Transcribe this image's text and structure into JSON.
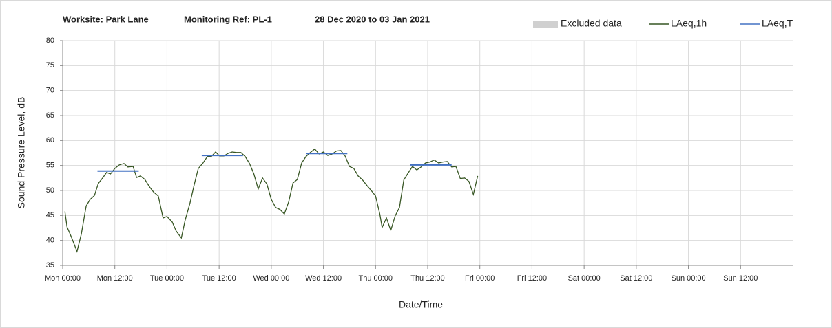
{
  "chart_data": {
    "type": "line",
    "title": [
      "Worksite: Park Lane",
      "Monitoring Ref: PL-1",
      "28 Dec 2020 to 03 Jan 2021"
    ],
    "x_label": "Date/Time",
    "y_label": "Sound Pressure Level, dB",
    "xlim": [
      0,
      168
    ],
    "xticks": [
      {
        "value": 0,
        "label": "Mon 00:00"
      },
      {
        "value": 12,
        "label": "Mon 12:00"
      },
      {
        "value": 24,
        "label": "Tue 00:00"
      },
      {
        "value": 36,
        "label": "Tue 12:00"
      },
      {
        "value": 48,
        "label": "Wed 00:00"
      },
      {
        "value": 60,
        "label": "Wed 12:00"
      },
      {
        "value": 72,
        "label": "Thu 00:00"
      },
      {
        "value": 84,
        "label": "Thu 12:00"
      },
      {
        "value": 96,
        "label": "Fri 00:00"
      },
      {
        "value": 108,
        "label": "Fri 12:00"
      },
      {
        "value": 120,
        "label": "Sat 00:00"
      },
      {
        "value": 132,
        "label": "Sat 12:00"
      },
      {
        "value": 144,
        "label": "Sun 00:00"
      },
      {
        "value": 156,
        "label": "Sun 12:00"
      }
    ],
    "ylim": [
      35,
      80
    ],
    "yticks": [
      35,
      40,
      45,
      50,
      55,
      60,
      65,
      70,
      75,
      80
    ],
    "grid": true,
    "legend": [
      {
        "name": "Excluded data",
        "color": "#d0d0d0"
      }
    ],
    "series": [
      {
        "name": "LAeq,1h",
        "color": "#375623",
        "x": [
          0.5,
          1,
          2,
          3.3,
          4.3,
          5.4,
          6.3,
          7.3,
          8.2,
          9.2,
          10.1,
          11,
          12,
          13,
          14.1,
          15,
          16.2,
          17,
          17.9,
          18.9,
          20,
          20.9,
          22,
          23.1,
          24,
          25.2,
          26.1,
          27.3,
          28.2,
          29.3,
          30.3,
          31.2,
          32.3,
          33.3,
          34.2,
          35.2,
          36.1,
          37.1,
          38,
          39,
          40,
          41,
          42,
          43,
          44,
          45,
          46,
          47,
          48,
          49,
          50,
          51,
          52,
          53,
          54,
          55,
          56,
          57,
          58,
          59,
          60,
          61,
          62,
          63,
          64,
          65,
          66,
          67,
          68,
          69,
          70,
          71,
          72,
          73,
          73.5,
          74.5,
          75.5,
          76.5,
          77.5,
          78.5,
          79.5,
          80.5,
          81.5,
          82.5,
          83.5,
          84.5,
          85.5,
          86.5,
          87.5,
          88.5,
          89.5,
          90.5,
          91.5,
          92.5,
          93.5,
          94.5,
          95.5
        ],
        "values": [
          45.8,
          42.7,
          40.7,
          37.8,
          41.3,
          46.9,
          48.2,
          49.0,
          51.4,
          52.5,
          53.6,
          53.3,
          54.4,
          55.1,
          55.4,
          54.7,
          54.8,
          52.6,
          52.9,
          52.2,
          50.7,
          49.7,
          48.9,
          44.5,
          44.8,
          43.7,
          41.9,
          40.5,
          44.1,
          47.5,
          51.3,
          54.4,
          55.5,
          56.8,
          56.8,
          57.7,
          56.9,
          56.9,
          57.4,
          57.7,
          57.6,
          57.6,
          56.8,
          55.4,
          53.3,
          50.3,
          52.5,
          51.3,
          48.2,
          46.6,
          46.2,
          45.3,
          47.7,
          51.5,
          52.2,
          55.5,
          56.8,
          57.6,
          58.3,
          57.3,
          57.7,
          57.0,
          57.3,
          57.9,
          58.0,
          56.9,
          54.8,
          54.4,
          52.9,
          52.1,
          51.0,
          50.0,
          48.9,
          45.2,
          42.6,
          44.5,
          42.0,
          44.9,
          46.6,
          52.1,
          53.5,
          54.8,
          54.1,
          54.7,
          55.5,
          55.7,
          56.1,
          55.5,
          55.7,
          55.8,
          54.7,
          54.8,
          52.4,
          52.5,
          51.8,
          49.2,
          52.9
        ]
      },
      {
        "name": "LAeq,T",
        "color": "#4472c4",
        "x": [
          8,
          17.5,
          20,
          32,
          41.5,
          44,
          56,
          65.5,
          68,
          80,
          89.5
        ],
        "values": [
          53.9,
          53.9,
          null,
          57.0,
          57.0,
          null,
          57.4,
          57.4,
          null,
          55.1,
          55.1
        ]
      }
    ]
  }
}
